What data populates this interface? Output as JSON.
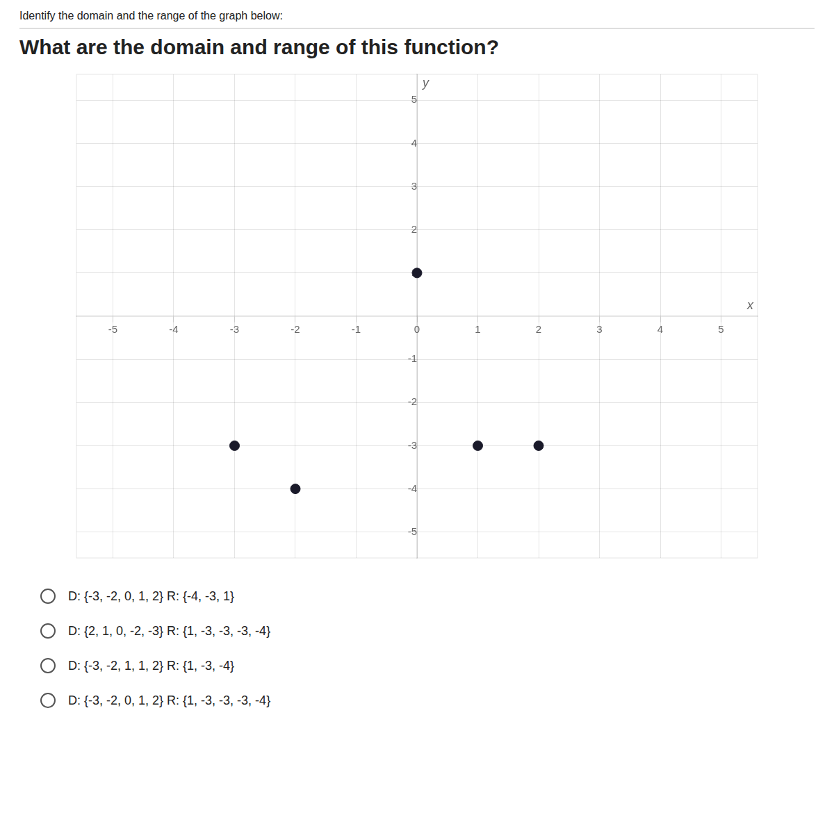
{
  "chart_data": {
    "type": "scatter",
    "subtitle": "Identify the domain and the range of the graph below:",
    "title": "What are the domain and range of this function?",
    "x_label": "x",
    "y_label": "y",
    "x": [
      0,
      -3,
      -2,
      1,
      2
    ],
    "values": [
      1,
      -3,
      -4,
      -3,
      -3
    ],
    "color": "#1a1a2a",
    "xlim": [
      -5.6,
      5.6
    ],
    "ylim": [
      -5.6,
      5.6
    ],
    "xticks": [
      -5,
      -4,
      -3,
      -2,
      -1,
      0,
      1,
      2,
      3,
      4,
      5
    ],
    "yticks": [
      -5,
      -4,
      -3,
      -2,
      -1,
      1,
      2,
      3,
      4,
      5
    ],
    "grid": true,
    "annotations": [
      "D: {-3, -2, 0, 1, 2}  R: {-4, -3, 1}",
      "D: {2, 1, 0, -2, -3}  R: {1, -3, -3, -3, -4}",
      "D: {-3, -2, 1, 1, 2}  R: {1, -3, -4}",
      "D: {-3, -2, 0, 1, 2}  R: {1, -3, -3, -3, -4}"
    ]
  }
}
